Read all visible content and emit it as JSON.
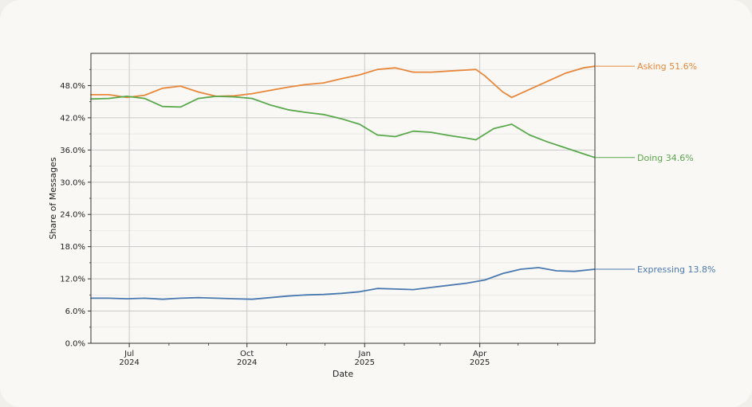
{
  "chart_data": {
    "type": "line",
    "title": "",
    "xlabel": "Date",
    "ylabel": "Share of Messages",
    "xlim": [
      "2024-06-01",
      "2025-06-30"
    ],
    "ylim": [
      0,
      54
    ],
    "yticks": [
      0,
      6,
      12,
      18,
      24,
      30,
      36,
      42,
      48
    ],
    "yticks_labels": [
      "0.0%",
      "6.0%",
      "12.0%",
      "18.0%",
      "24.0%",
      "30.0%",
      "36.0%",
      "42.0%",
      "48.0%"
    ],
    "xticks": [
      {
        "date": "2024-07-01",
        "line1": "Jul",
        "line2": "2024"
      },
      {
        "date": "2024-10-01",
        "line1": "Oct",
        "line2": "2024"
      },
      {
        "date": "2025-01-01",
        "line1": "Jan",
        "line2": "2025"
      },
      {
        "date": "2025-04-01",
        "line1": "Apr",
        "line2": "2025"
      }
    ],
    "minor_xticks": [
      "2024-08-01",
      "2024-09-01",
      "2024-11-01",
      "2024-12-01",
      "2025-02-01",
      "2025-03-01",
      "2025-05-01",
      "2025-06-01"
    ],
    "grid": true,
    "series": [
      {
        "name": "Asking",
        "end_label": "Asking  51.6%",
        "color": "#e8873a",
        "points": [
          [
            "2024-06-01",
            46.3
          ],
          [
            "2024-06-15",
            46.3
          ],
          [
            "2024-06-29",
            45.8
          ],
          [
            "2024-07-13",
            46.2
          ],
          [
            "2024-07-27",
            47.5
          ],
          [
            "2024-08-10",
            47.9
          ],
          [
            "2024-08-24",
            46.8
          ],
          [
            "2024-09-07",
            46.0
          ],
          [
            "2024-09-21",
            46.1
          ],
          [
            "2024-10-05",
            46.5
          ],
          [
            "2024-10-19",
            47.1
          ],
          [
            "2024-11-02",
            47.7
          ],
          [
            "2024-11-16",
            48.2
          ],
          [
            "2024-11-30",
            48.5
          ],
          [
            "2024-12-14",
            49.3
          ],
          [
            "2024-12-28",
            50.0
          ],
          [
            "2025-01-11",
            51.0
          ],
          [
            "2025-01-25",
            51.3
          ],
          [
            "2025-02-08",
            50.5
          ],
          [
            "2025-02-22",
            50.5
          ],
          [
            "2025-03-08",
            50.7
          ],
          [
            "2025-03-22",
            50.9
          ],
          [
            "2025-03-29",
            51.0
          ],
          [
            "2025-04-05",
            49.8
          ],
          [
            "2025-04-19",
            46.8
          ],
          [
            "2025-04-26",
            45.8
          ],
          [
            "2025-05-10",
            47.3
          ],
          [
            "2025-05-24",
            48.8
          ],
          [
            "2025-06-07",
            50.3
          ],
          [
            "2025-06-21",
            51.3
          ],
          [
            "2025-06-30",
            51.6
          ]
        ]
      },
      {
        "name": "Doing",
        "end_label": "Doing  34.6%",
        "color": "#59a84b",
        "points": [
          [
            "2024-06-01",
            45.5
          ],
          [
            "2024-06-15",
            45.6
          ],
          [
            "2024-06-29",
            46.0
          ],
          [
            "2024-07-13",
            45.6
          ],
          [
            "2024-07-27",
            44.1
          ],
          [
            "2024-08-10",
            44.0
          ],
          [
            "2024-08-24",
            45.6
          ],
          [
            "2024-09-07",
            46.0
          ],
          [
            "2024-09-21",
            45.9
          ],
          [
            "2024-10-05",
            45.6
          ],
          [
            "2024-10-19",
            44.4
          ],
          [
            "2024-11-02",
            43.5
          ],
          [
            "2024-11-16",
            43.0
          ],
          [
            "2024-11-30",
            42.6
          ],
          [
            "2024-12-14",
            41.8
          ],
          [
            "2024-12-28",
            40.8
          ],
          [
            "2025-01-11",
            38.8
          ],
          [
            "2025-01-25",
            38.5
          ],
          [
            "2025-02-08",
            39.5
          ],
          [
            "2025-02-22",
            39.3
          ],
          [
            "2025-03-08",
            38.7
          ],
          [
            "2025-03-22",
            38.2
          ],
          [
            "2025-03-29",
            37.9
          ],
          [
            "2025-04-12",
            40.0
          ],
          [
            "2025-04-26",
            40.8
          ],
          [
            "2025-05-10",
            38.8
          ],
          [
            "2025-05-24",
            37.5
          ],
          [
            "2025-06-07",
            36.4
          ],
          [
            "2025-06-21",
            35.3
          ],
          [
            "2025-06-30",
            34.6
          ]
        ]
      },
      {
        "name": "Expressing",
        "end_label": "Expressing  13.8%",
        "color": "#4a78b0",
        "points": [
          [
            "2024-06-01",
            8.4
          ],
          [
            "2024-06-15",
            8.4
          ],
          [
            "2024-06-29",
            8.3
          ],
          [
            "2024-07-13",
            8.4
          ],
          [
            "2024-07-27",
            8.2
          ],
          [
            "2024-08-10",
            8.4
          ],
          [
            "2024-08-24",
            8.5
          ],
          [
            "2024-09-07",
            8.4
          ],
          [
            "2024-09-21",
            8.3
          ],
          [
            "2024-10-05",
            8.2
          ],
          [
            "2024-10-19",
            8.5
          ],
          [
            "2024-11-02",
            8.8
          ],
          [
            "2024-11-16",
            9.0
          ],
          [
            "2024-11-30",
            9.1
          ],
          [
            "2024-12-14",
            9.3
          ],
          [
            "2024-12-28",
            9.6
          ],
          [
            "2025-01-11",
            10.2
          ],
          [
            "2025-01-25",
            10.1
          ],
          [
            "2025-02-08",
            10.0
          ],
          [
            "2025-02-22",
            10.4
          ],
          [
            "2025-03-08",
            10.8
          ],
          [
            "2025-03-22",
            11.2
          ],
          [
            "2025-04-05",
            11.8
          ],
          [
            "2025-04-19",
            13.0
          ],
          [
            "2025-05-03",
            13.8
          ],
          [
            "2025-05-17",
            14.1
          ],
          [
            "2025-05-31",
            13.5
          ],
          [
            "2025-06-14",
            13.4
          ],
          [
            "2025-06-30",
            13.8
          ]
        ]
      }
    ]
  }
}
